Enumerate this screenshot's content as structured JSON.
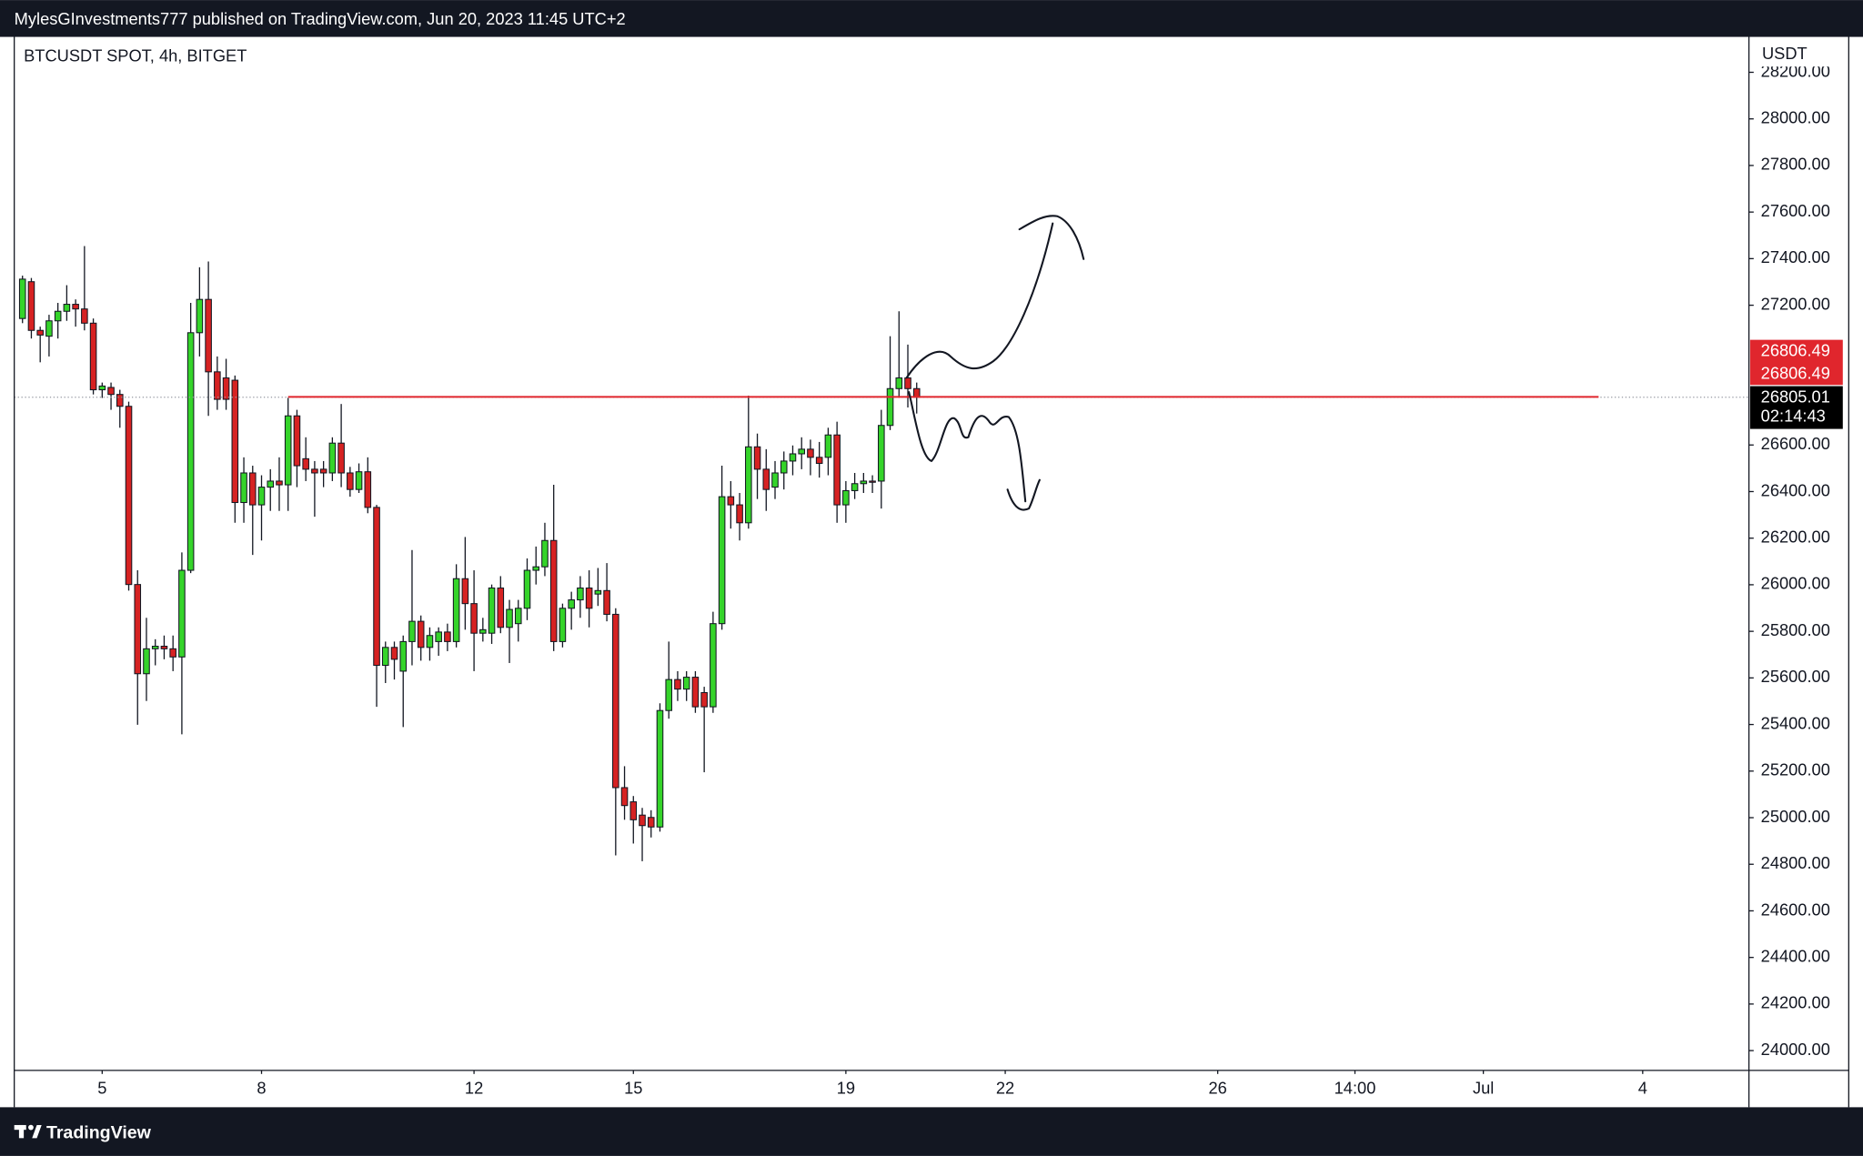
{
  "chart_data": {
    "type": "candlestick",
    "header": "MylesGInvestments777 published on TradingView.com, Jun 20, 2023 11:45 UTC+2",
    "title": "BTCUSDT SPOT, 4h, BITGET",
    "currency": "USDT",
    "brand": "TradingView",
    "countdown": "02:14:43",
    "up_color": "#35d42a",
    "down_color": "#d62222",
    "x": [
      3.5,
      3.6667,
      3.8333,
      4,
      4.1667,
      4.3333,
      4.5,
      4.6667,
      4.8333,
      5,
      5.1667,
      5.3333,
      5.5,
      5.6667,
      5.8333,
      6,
      6.1667,
      6.3333,
      6.5,
      6.6667,
      6.8333,
      7,
      7.1667,
      7.3333,
      7.5,
      7.6667,
      7.8333,
      8,
      8.1667,
      8.3333,
      8.5,
      8.6667,
      8.8333,
      9,
      9.1667,
      9.3333,
      9.5,
      9.6667,
      9.8333,
      10,
      10.1667,
      10.3333,
      10.5,
      10.6667,
      10.8333,
      11,
      11.1667,
      11.3333,
      11.5,
      11.6667,
      11.8333,
      12,
      12.1667,
      12.3333,
      12.5,
      12.6667,
      12.8333,
      13,
      13.1667,
      13.3333,
      13.5,
      13.6667,
      13.8333,
      14,
      14.1667,
      14.3333,
      14.5,
      14.6667,
      14.8333,
      15,
      15.1667,
      15.3333,
      15.5,
      15.6667,
      15.8333,
      16,
      16.1667,
      16.3333,
      16.5,
      16.6667,
      16.8333,
      17,
      17.1667,
      17.3333,
      17.5,
      17.6667,
      17.8333,
      18,
      18.1667,
      18.3333,
      18.5,
      18.6667,
      18.8333,
      19,
      19.1667,
      19.3333,
      19.5,
      19.6667,
      19.8333,
      20,
      20.1667,
      20.3333
    ],
    "open": [
      27143,
      27301,
      27092,
      27067,
      27133,
      27174,
      27204,
      27184,
      27123,
      26837,
      26847,
      26817,
      26766,
      26001,
      25618,
      25725,
      25736,
      25725,
      25690,
      26062,
      27082,
      27225,
      26914,
      26888,
      26878,
      26353,
      26480,
      26343,
      26419,
      26445,
      26429,
      26725,
      26541,
      26496,
      26496,
      26480,
      26608,
      26480,
      26409,
      26485,
      26332,
      25654,
      25731,
      25629,
      25756,
      25843,
      25731,
      25756,
      25797,
      25756,
      26026,
      25919,
      25792,
      25792,
      25986,
      25817,
      25833,
      25899,
      26062,
      26077,
      26190,
      25756,
      25899,
      25935,
      25986,
      25960,
      25975,
      25873,
      25129,
      25068,
      25011,
      25001,
      24960,
      25460,
      25593,
      25552,
      25603,
      25537,
      25476,
      25833,
      26378,
      26343,
      26266,
      26592,
      26496,
      26419,
      26480,
      26531,
      26562,
      26582,
      26547,
      26547,
      26643,
      26343,
      26404,
      26434,
      26445,
      26445,
      26684,
      26842,
      26888,
      26842
    ],
    "high": [
      27327,
      27317,
      27108,
      27159,
      27210,
      27286,
      27225,
      27454,
      27143,
      26868,
      26868,
      26837,
      26786,
      26062,
      25858,
      25766,
      25782,
      25782,
      26139,
      27210,
      27363,
      27388,
      26980,
      26970,
      26898,
      26547,
      26511,
      26470,
      26496,
      26547,
      26802,
      26751,
      26633,
      26531,
      26531,
      26633,
      26776,
      26506,
      26521,
      26547,
      26343,
      25756,
      25756,
      25782,
      26149,
      25868,
      25817,
      25817,
      25833,
      26088,
      26205,
      26062,
      25858,
      26001,
      26037,
      25935,
      25935,
      26113,
      26164,
      26266,
      26429,
      25919,
      25970,
      26037,
      26062,
      26072,
      26093,
      25899,
      25221,
      25093,
      25042,
      25032,
      25491,
      25756,
      25629,
      25629,
      25629,
      25562,
      25884,
      26511,
      26445,
      26394,
      26812,
      26649,
      26582,
      26531,
      26572,
      26598,
      26633,
      26623,
      26613,
      26674,
      26700,
      26445,
      26480,
      26480,
      26470,
      26751,
      27067,
      27174,
      27031,
      26868
    ],
    "low": [
      27123,
      27057,
      26955,
      26980,
      27057,
      27133,
      27108,
      27092,
      26817,
      26802,
      26751,
      26674,
      25975,
      25399,
      25501,
      25654,
      25680,
      25629,
      25358,
      26050,
      26980,
      26725,
      26751,
      26751,
      26266,
      26266,
      26128,
      26190,
      26317,
      26317,
      26317,
      26419,
      26445,
      26292,
      26419,
      26445,
      26419,
      26378,
      26394,
      26307,
      25476,
      25578,
      25593,
      25389,
      25654,
      25674,
      25674,
      25695,
      25715,
      25731,
      25807,
      25629,
      25756,
      25746,
      25792,
      25664,
      25756,
      25848,
      26001,
      26037,
      25715,
      25731,
      25807,
      25858,
      25817,
      25909,
      25843,
      24838,
      24991,
      24889,
      24813,
      24915,
      24940,
      25425,
      25501,
      25501,
      25450,
      25195,
      25450,
      25807,
      26241,
      26190,
      26241,
      26368,
      26317,
      26368,
      26409,
      26470,
      26496,
      26470,
      26460,
      26470,
      26266,
      26266,
      26368,
      26394,
      26394,
      26327,
      26664,
      26802,
      26761,
      26735
    ],
    "close": [
      27312,
      27092,
      27072,
      27133,
      27174,
      27204,
      27184,
      27123,
      26837,
      26853,
      26817,
      26766,
      26001,
      25618,
      25725,
      25736,
      25725,
      25690,
      26062,
      27082,
      27225,
      26914,
      26796,
      26796,
      26353,
      26480,
      26343,
      26419,
      26445,
      26429,
      26725,
      26511,
      26496,
      26480,
      26480,
      26608,
      26480,
      26409,
      26485,
      26332,
      25654,
      25731,
      25680,
      25756,
      25843,
      25731,
      25782,
      25797,
      25756,
      26026,
      25919,
      25792,
      25807,
      25986,
      25817,
      25894,
      25899,
      26062,
      26077,
      26190,
      25756,
      25899,
      25935,
      25986,
      25899,
      25975,
      25873,
      25129,
      25052,
      24991,
      24966,
      24960,
      25460,
      25593,
      25552,
      25603,
      25476,
      25476,
      25833,
      26378,
      26343,
      26266,
      26592,
      26496,
      26409,
      26480,
      26531,
      26562,
      26582,
      26547,
      26521,
      26643,
      26343,
      26404,
      26434,
      26445,
      26440,
      26684,
      26842,
      26888,
      26842,
      26805.01
    ],
    "hline": {
      "value": 26806.49,
      "color": "#e0262d",
      "x": [
        8.5,
        33.17
      ]
    },
    "xlim": [
      3.345,
      36.0
    ],
    "xticks": [
      5,
      8,
      12,
      15,
      19,
      22,
      26,
      {
        "value": 28.5833,
        "label": "14:00"
      },
      {
        "value": 31,
        "label": "Jul"
      },
      {
        "value": 34,
        "label": "4"
      }
    ],
    "ylim": [
      23915,
      28352
    ],
    "yticks": [
      {
        "value": 24000,
        "label": "24000.00"
      },
      {
        "value": 24200,
        "label": "24200.00"
      },
      {
        "value": 24400,
        "label": "24400.00"
      },
      {
        "value": 24600,
        "label": "24600.00"
      },
      {
        "value": 24800,
        "label": "24800.00"
      },
      {
        "value": 25000,
        "label": "25000.00"
      },
      {
        "value": 25200,
        "label": "25200.00"
      },
      {
        "value": 25400,
        "label": "25400.00"
      },
      {
        "value": 25600,
        "label": "25600.00"
      },
      {
        "value": 25800,
        "label": "25800.00"
      },
      {
        "value": 26000,
        "label": "26000.00"
      },
      {
        "value": 26200,
        "label": "26200.00"
      },
      {
        "value": 26400,
        "label": "26400.00"
      },
      {
        "value": 26600,
        "label": "26600.00"
      },
      {
        "value": 27200,
        "label": "27200.00"
      },
      {
        "value": 27400,
        "label": "27400.00"
      },
      {
        "value": 27600,
        "label": "27600.00"
      },
      {
        "value": 27800,
        "label": "27800.00"
      },
      {
        "value": 28000,
        "label": "28000.00"
      },
      {
        "value": 28200,
        "label": "28200.00"
      }
    ]
  }
}
